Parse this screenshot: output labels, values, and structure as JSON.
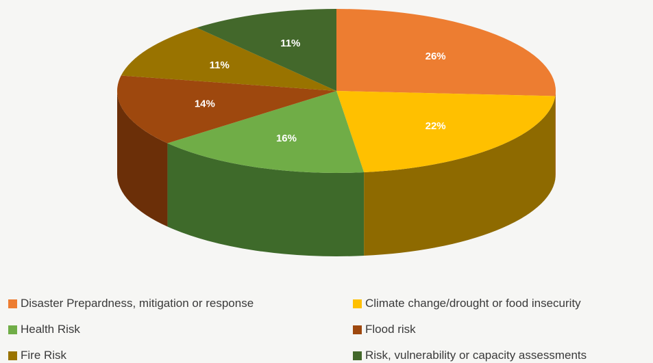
{
  "chart_data": {
    "type": "pie",
    "style": "3d",
    "title": "",
    "slices": [
      {
        "label": "Disaster Prepardness, mitigation or response",
        "value": 26,
        "display": "26%",
        "color": "#ED7D31",
        "side_color": "#B45E22"
      },
      {
        "label": "Climate change/drought or food insecurity",
        "value": 22,
        "display": "22%",
        "color": "#FFC000",
        "side_color": "#8E6A00"
      },
      {
        "label": "Health Risk",
        "value": 16,
        "display": "16%",
        "color": "#70AD47",
        "side_color": "#3E6A2A"
      },
      {
        "label": "Flood risk",
        "value": 14,
        "display": "14%",
        "color": "#9E480E",
        "side_color": "#6B2F08"
      },
      {
        "label": "Fire Risk",
        "value": 11,
        "display": "11%",
        "color": "#997300",
        "side_color": "#664C00"
      },
      {
        "label": "Risk, vulnerability or capacity assessments",
        "value": 11,
        "display": "11%",
        "color": "#43682B",
        "side_color": "#2C461C"
      }
    ],
    "legend_position": "bottom",
    "legend_order": [
      0,
      1,
      2,
      3,
      4,
      5
    ]
  }
}
